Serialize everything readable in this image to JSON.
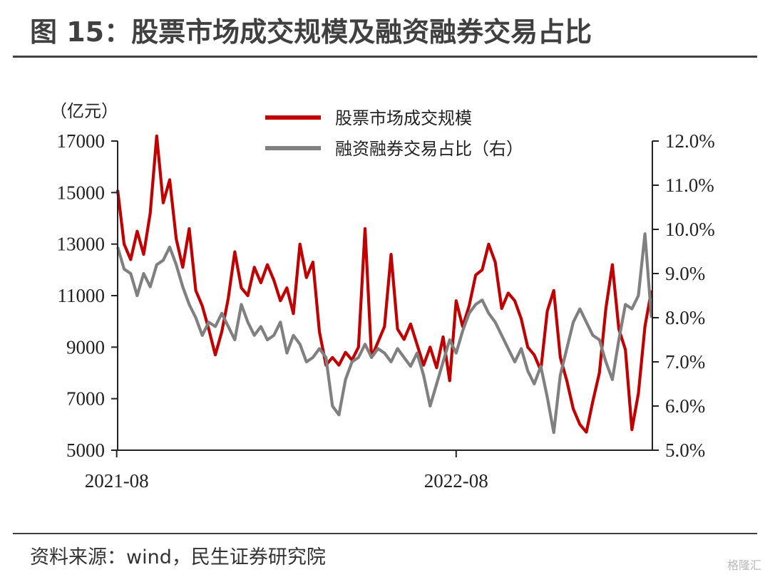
{
  "header": {
    "title": "图 15：股票市场成交规模及融资融券交易占比"
  },
  "footer": {
    "source": "资料来源：wind，民生证券研究院",
    "watermark": "格隆汇"
  },
  "colors": {
    "series_red": "#c00000",
    "series_gray": "#808080",
    "axis": "#222222",
    "rule": "#404040"
  },
  "chart_data": {
    "type": "line",
    "left_unit": "（亿元）",
    "x_ticks": [
      "2021-08",
      "2022-08"
    ],
    "x_range": [
      "2021-08-02",
      "2023-02-28"
    ],
    "y_left": {
      "min": 5000,
      "max": 17000,
      "ticks": [
        "5000",
        "7000",
        "9000",
        "11000",
        "13000",
        "15000",
        "17000"
      ]
    },
    "y_right": {
      "min": 5.0,
      "max": 12.0,
      "ticks": [
        "5.0%",
        "6.0%",
        "7.0%",
        "8.0%",
        "9.0%",
        "10.0%",
        "11.0%",
        "12.0%"
      ]
    },
    "legend_position": "top-center",
    "series": [
      {
        "name": "股票市场成交规模",
        "axis": "left",
        "color": "#c00000",
        "points": [
          [
            "2021-08-02",
            15100
          ],
          [
            "2021-08-09",
            13000
          ],
          [
            "2021-08-16",
            12400
          ],
          [
            "2021-08-23",
            13500
          ],
          [
            "2021-08-30",
            12600
          ],
          [
            "2021-09-06",
            14200
          ],
          [
            "2021-09-13",
            17200
          ],
          [
            "2021-09-20",
            14600
          ],
          [
            "2021-09-27",
            15500
          ],
          [
            "2021-10-04",
            13200
          ],
          [
            "2021-10-11",
            12100
          ],
          [
            "2021-10-18",
            13600
          ],
          [
            "2021-10-25",
            11200
          ],
          [
            "2021-11-01",
            10600
          ],
          [
            "2021-11-08",
            9700
          ],
          [
            "2021-11-15",
            8700
          ],
          [
            "2021-11-22",
            9600
          ],
          [
            "2021-11-29",
            10900
          ],
          [
            "2021-12-06",
            12700
          ],
          [
            "2021-12-13",
            11300
          ],
          [
            "2021-12-20",
            11000
          ],
          [
            "2021-12-27",
            12100
          ],
          [
            "2022-01-03",
            11500
          ],
          [
            "2022-01-10",
            12200
          ],
          [
            "2022-01-17",
            11600
          ],
          [
            "2022-01-24",
            10800
          ],
          [
            "2022-01-31",
            11300
          ],
          [
            "2022-02-07",
            10300
          ],
          [
            "2022-02-14",
            13000
          ],
          [
            "2022-02-21",
            11700
          ],
          [
            "2022-02-28",
            12300
          ],
          [
            "2022-03-07",
            9600
          ],
          [
            "2022-03-14",
            8300
          ],
          [
            "2022-03-21",
            8600
          ],
          [
            "2022-03-28",
            8300
          ],
          [
            "2022-04-04",
            8800
          ],
          [
            "2022-04-11",
            8500
          ],
          [
            "2022-04-18",
            9000
          ],
          [
            "2022-04-25",
            13600
          ],
          [
            "2022-05-02",
            8600
          ],
          [
            "2022-05-09",
            9200
          ],
          [
            "2022-05-16",
            9800
          ],
          [
            "2022-05-23",
            12600
          ],
          [
            "2022-05-30",
            9700
          ],
          [
            "2022-06-06",
            9300
          ],
          [
            "2022-06-13",
            9900
          ],
          [
            "2022-06-20",
            9100
          ],
          [
            "2022-06-27",
            8300
          ],
          [
            "2022-07-04",
            9000
          ],
          [
            "2022-07-11",
            8200
          ],
          [
            "2022-07-18",
            9400
          ],
          [
            "2022-07-25",
            7700
          ],
          [
            "2022-08-01",
            10800
          ],
          [
            "2022-08-08",
            9800
          ],
          [
            "2022-08-15",
            10600
          ],
          [
            "2022-08-22",
            11800
          ],
          [
            "2022-08-29",
            12000
          ],
          [
            "2022-09-05",
            13000
          ],
          [
            "2022-09-12",
            12300
          ],
          [
            "2022-09-19",
            10500
          ],
          [
            "2022-09-26",
            11100
          ],
          [
            "2022-10-03",
            10800
          ],
          [
            "2022-10-10",
            10100
          ],
          [
            "2022-10-17",
            9000
          ],
          [
            "2022-10-24",
            8700
          ],
          [
            "2022-10-31",
            8100
          ],
          [
            "2022-11-07",
            10400
          ],
          [
            "2022-11-14",
            11200
          ],
          [
            "2022-11-21",
            8600
          ],
          [
            "2022-11-28",
            7700
          ],
          [
            "2022-12-05",
            6600
          ],
          [
            "2022-12-12",
            6000
          ],
          [
            "2022-12-19",
            5700
          ],
          [
            "2022-12-26",
            6900
          ],
          [
            "2023-01-02",
            8000
          ],
          [
            "2023-01-09",
            10500
          ],
          [
            "2023-01-16",
            12200
          ],
          [
            "2023-01-23",
            9700
          ],
          [
            "2023-01-30",
            8900
          ],
          [
            "2023-02-06",
            5800
          ],
          [
            "2023-02-13",
            7200
          ],
          [
            "2023-02-20",
            9800
          ],
          [
            "2023-02-27",
            11200
          ]
        ]
      },
      {
        "name": "融资融券交易占比（右）",
        "axis": "right",
        "color": "#808080",
        "points": [
          [
            "2021-08-02",
            9.6
          ],
          [
            "2021-08-09",
            9.1
          ],
          [
            "2021-08-16",
            9.0
          ],
          [
            "2021-08-23",
            8.5
          ],
          [
            "2021-08-30",
            9.0
          ],
          [
            "2021-09-06",
            8.7
          ],
          [
            "2021-09-13",
            9.2
          ],
          [
            "2021-09-20",
            9.3
          ],
          [
            "2021-09-27",
            9.6
          ],
          [
            "2021-10-04",
            9.2
          ],
          [
            "2021-10-11",
            8.7
          ],
          [
            "2021-10-18",
            8.3
          ],
          [
            "2021-10-25",
            8.0
          ],
          [
            "2021-11-01",
            7.6
          ],
          [
            "2021-11-08",
            7.9
          ],
          [
            "2021-11-15",
            7.8
          ],
          [
            "2021-11-22",
            8.1
          ],
          [
            "2021-11-29",
            7.8
          ],
          [
            "2021-12-06",
            7.5
          ],
          [
            "2021-12-13",
            8.3
          ],
          [
            "2021-12-20",
            7.9
          ],
          [
            "2021-12-27",
            7.6
          ],
          [
            "2022-01-03",
            7.8
          ],
          [
            "2022-01-10",
            7.5
          ],
          [
            "2022-01-17",
            7.6
          ],
          [
            "2022-01-24",
            7.9
          ],
          [
            "2022-01-31",
            7.2
          ],
          [
            "2022-02-07",
            7.6
          ],
          [
            "2022-02-14",
            7.4
          ],
          [
            "2022-02-21",
            7.0
          ],
          [
            "2022-02-28",
            7.1
          ],
          [
            "2022-03-07",
            7.3
          ],
          [
            "2022-03-14",
            7.1
          ],
          [
            "2022-03-21",
            6.0
          ],
          [
            "2022-03-28",
            5.8
          ],
          [
            "2022-04-04",
            6.6
          ],
          [
            "2022-04-11",
            7.0
          ],
          [
            "2022-04-18",
            7.1
          ],
          [
            "2022-04-25",
            7.4
          ],
          [
            "2022-05-02",
            7.1
          ],
          [
            "2022-05-09",
            7.3
          ],
          [
            "2022-05-16",
            7.2
          ],
          [
            "2022-05-23",
            7.0
          ],
          [
            "2022-05-30",
            7.3
          ],
          [
            "2022-06-06",
            7.1
          ],
          [
            "2022-06-13",
            6.9
          ],
          [
            "2022-06-20",
            7.2
          ],
          [
            "2022-06-27",
            6.7
          ],
          [
            "2022-07-04",
            6.0
          ],
          [
            "2022-07-11",
            6.5
          ],
          [
            "2022-07-18",
            7.0
          ],
          [
            "2022-07-25",
            7.5
          ],
          [
            "2022-08-01",
            7.2
          ],
          [
            "2022-08-08",
            7.7
          ],
          [
            "2022-08-15",
            8.1
          ],
          [
            "2022-08-22",
            8.3
          ],
          [
            "2022-08-29",
            8.4
          ],
          [
            "2022-09-05",
            8.1
          ],
          [
            "2022-09-12",
            7.9
          ],
          [
            "2022-09-19",
            7.6
          ],
          [
            "2022-09-26",
            7.3
          ],
          [
            "2022-10-03",
            7.0
          ],
          [
            "2022-10-10",
            7.3
          ],
          [
            "2022-10-17",
            6.8
          ],
          [
            "2022-10-24",
            6.5
          ],
          [
            "2022-10-31",
            6.9
          ],
          [
            "2022-11-07",
            6.2
          ],
          [
            "2022-11-14",
            5.4
          ],
          [
            "2022-11-21",
            6.7
          ],
          [
            "2022-11-28",
            7.3
          ],
          [
            "2022-12-05",
            7.9
          ],
          [
            "2022-12-12",
            8.2
          ],
          [
            "2022-12-19",
            7.9
          ],
          [
            "2022-12-26",
            7.6
          ],
          [
            "2023-01-02",
            7.5
          ],
          [
            "2023-01-09",
            7.0
          ],
          [
            "2023-01-16",
            6.6
          ],
          [
            "2023-01-23",
            7.5
          ],
          [
            "2023-01-30",
            8.3
          ],
          [
            "2023-02-06",
            8.2
          ],
          [
            "2023-02-13",
            8.5
          ],
          [
            "2023-02-20",
            9.9
          ],
          [
            "2023-02-27",
            8.0
          ]
        ]
      }
    ]
  }
}
